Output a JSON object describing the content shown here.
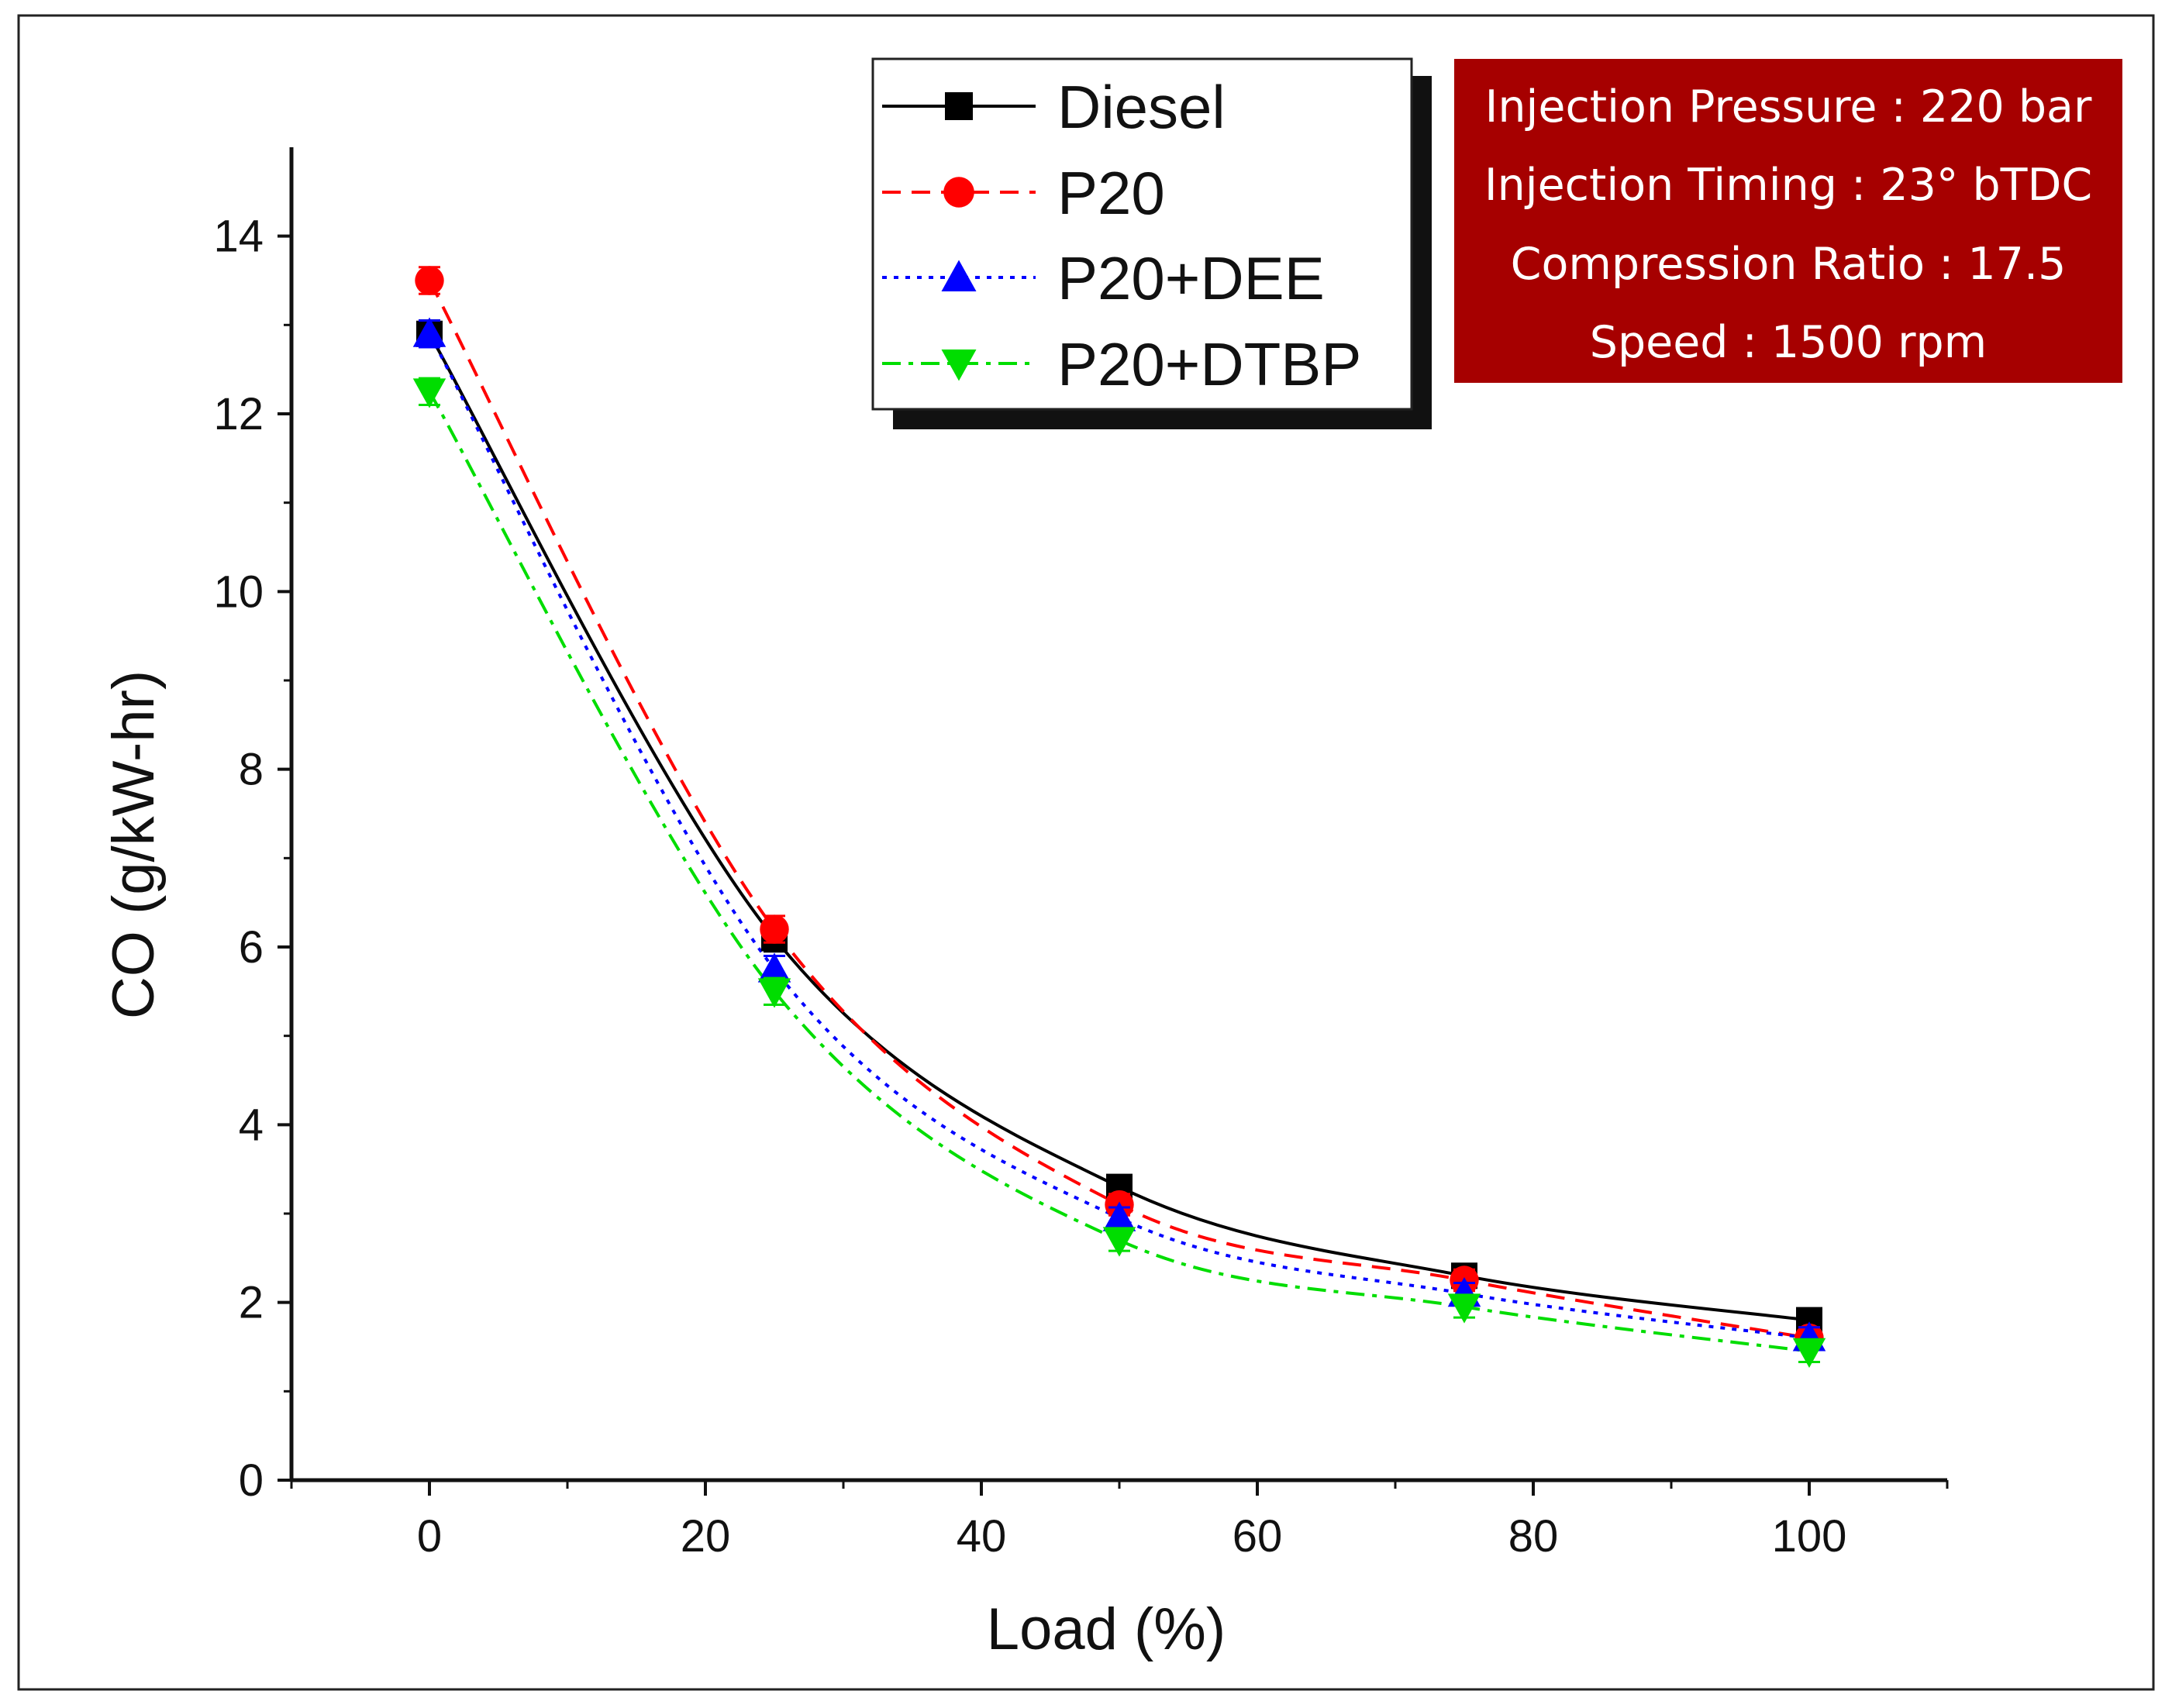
{
  "chart_data": {
    "type": "line",
    "title": "",
    "xlabel": "Load (%)",
    "ylabel": "CO (g/kW-hr)",
    "xlim": [
      -10,
      110
    ],
    "ylim": [
      0,
      15
    ],
    "xticks": [
      0,
      20,
      40,
      60,
      80,
      100
    ],
    "xtick_labels": [
      "0",
      "20",
      "40",
      "60",
      "80",
      "100"
    ],
    "yticks": [
      0,
      2,
      4,
      6,
      8,
      10,
      12,
      14
    ],
    "ytick_labels": [
      "0",
      "2",
      "4",
      "6",
      "8",
      "10",
      "12",
      "14"
    ],
    "grid": false,
    "legend_position": "top-center",
    "x": [
      0,
      25,
      50,
      75,
      100
    ],
    "series": [
      {
        "name": "Diesel",
        "values": [
          12.9,
          6.1,
          3.3,
          2.3,
          1.8
        ],
        "error": [
          0.15,
          0.15,
          0.12,
          0.12,
          0.12
        ],
        "color": "#000000",
        "marker": "square",
        "line_style": "solid"
      },
      {
        "name": "P20",
        "values": [
          13.5,
          6.2,
          3.1,
          2.25,
          1.6
        ],
        "error": [
          0.15,
          0.15,
          0.12,
          0.12,
          0.12
        ],
        "color": "#ff0000",
        "marker": "circle",
        "line_style": "dash"
      },
      {
        "name": "P20+DEE",
        "values": [
          12.9,
          5.75,
          2.95,
          2.1,
          1.6
        ],
        "error": [
          0.15,
          0.15,
          0.12,
          0.12,
          0.12
        ],
        "color": "#0000ff",
        "marker": "triangle-up",
        "line_style": "dot"
      },
      {
        "name": "P20+DTBP",
        "values": [
          12.25,
          5.5,
          2.7,
          1.95,
          1.45
        ],
        "error": [
          0.15,
          0.15,
          0.12,
          0.12,
          0.12
        ],
        "color": "#00dd00",
        "marker": "triangle-down",
        "line_style": "dash-dot"
      }
    ],
    "annotations": {
      "conditions": [
        "Injection Pressure : 220 bar",
        "Injection Timing : 23° bTDC",
        "Compression Ratio : 17.5",
        "Speed : 1500 rpm"
      ],
      "background_color": "#a60000",
      "text_color": "#ffffff"
    }
  }
}
